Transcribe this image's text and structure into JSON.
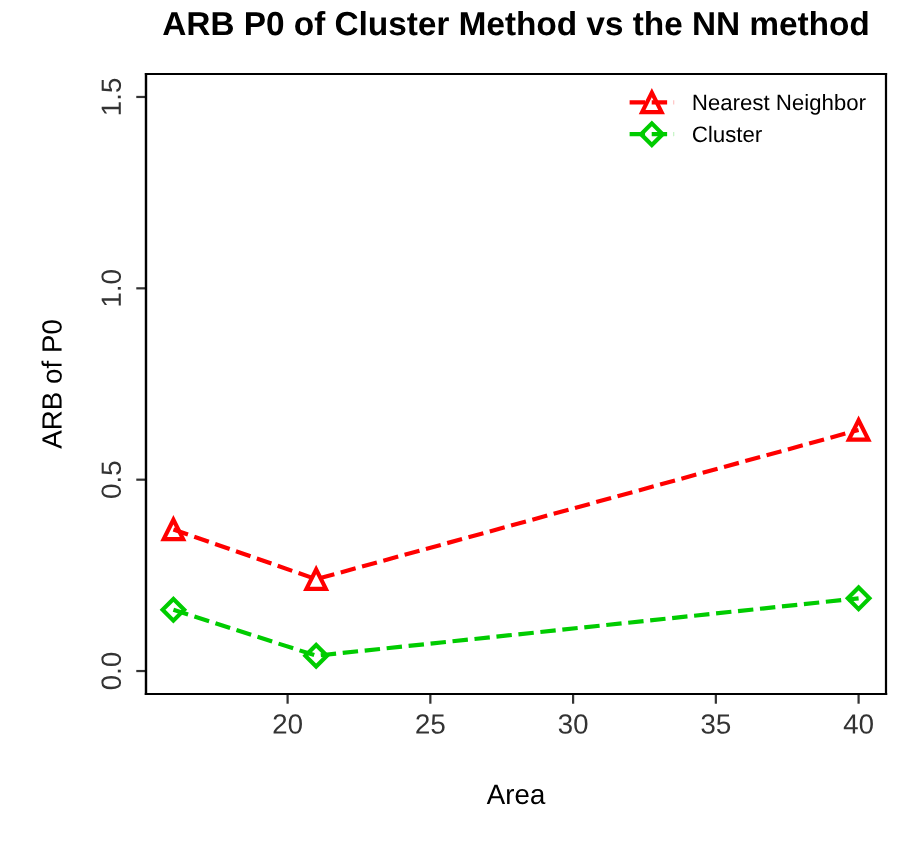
{
  "chart_data": {
    "type": "line",
    "title": "ARB P0 of Cluster Method vs the NN method",
    "xlabel": "Area",
    "ylabel": "ARB of P0",
    "x": [
      16,
      21,
      40
    ],
    "series": [
      {
        "name": "Nearest Neighbor",
        "color": "#ff0000",
        "values": [
          0.37,
          0.24,
          0.63
        ],
        "marker": "triangle"
      },
      {
        "name": "Cluster",
        "color": "#00cc00",
        "values": [
          0.16,
          0.04,
          0.19
        ],
        "marker": "diamond"
      }
    ],
    "xlim": [
      15.04,
      40.96
    ],
    "xticks": [
      20,
      25,
      30,
      35,
      40
    ],
    "ylim": [
      -0.06,
      1.56
    ],
    "yticks": [
      {
        "value": 0,
        "label": "0.0"
      },
      0.5,
      {
        "value": 1,
        "label": "1.0"
      },
      1.5
    ],
    "line_style": "dashed",
    "legend": "top right",
    "grid": false
  }
}
